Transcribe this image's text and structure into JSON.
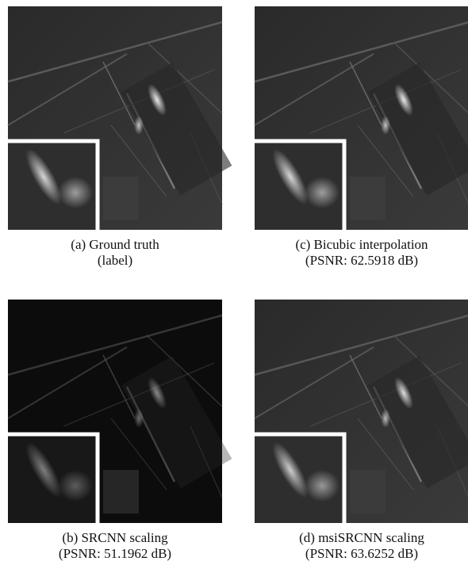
{
  "figure": {
    "panels": [
      {
        "caption": [
          "(a) Ground truth",
          "(label)"
        ]
      },
      {
        "caption": [
          "(c) Bicubic interpolation",
          "(PSNR: 62.5918 dB)"
        ]
      },
      {
        "caption": [
          "(b) SRCNN scaling",
          "(PSNR: 51.1962 dB)"
        ]
      },
      {
        "caption": [
          "(d) msiSRCNN scaling",
          "(PSNR: 63.6252 dB)"
        ]
      }
    ]
  }
}
